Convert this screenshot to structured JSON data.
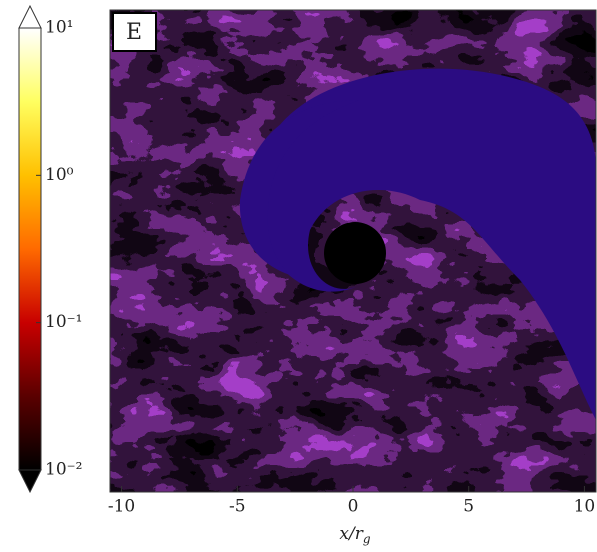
{
  "chart_data": {
    "type": "image",
    "panel_label": "E",
    "xlabel": "x/r",
    "xlabel_subscript": "g",
    "xlim": [
      -10.5,
      10.5
    ],
    "xticks": [
      -10,
      -5,
      0,
      5,
      10
    ],
    "colorbar_lim": [
      0.01,
      10
    ],
    "colorbar_log": true,
    "colorbar_ticks": [
      {
        "value": 10,
        "label": "10¹"
      },
      {
        "value": 1,
        "label": "10⁰"
      },
      {
        "value": 0.1,
        "label": "10⁻¹"
      },
      {
        "value": 0.01,
        "label": "10⁻²"
      }
    ],
    "colorbar_colors": [
      "#000000",
      "#5a0000",
      "#c80000",
      "#ff6a00",
      "#ffc000",
      "#ffff60",
      "#ffffff"
    ]
  }
}
